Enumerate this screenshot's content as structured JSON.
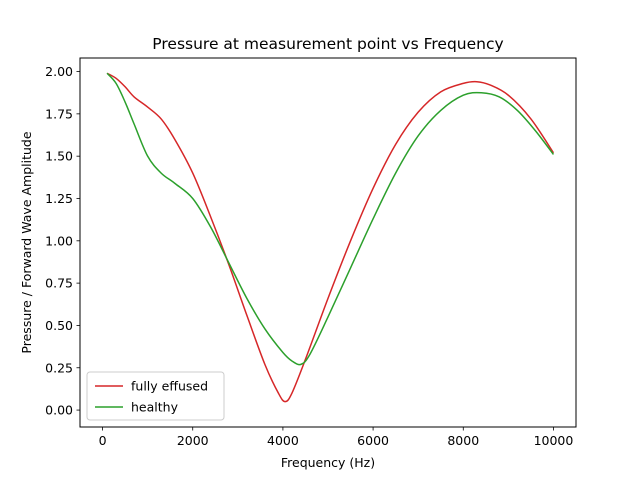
{
  "chart_data": {
    "type": "line",
    "title": "Pressure at measurement point vs Frequency",
    "xlabel": "Frequency (Hz)",
    "ylabel": "Pressure / Forward Wave Amplitude",
    "xlim": [
      -500,
      10500
    ],
    "ylim": [
      -0.1,
      2.08
    ],
    "xticks": [
      0,
      2000,
      4000,
      6000,
      8000,
      10000
    ],
    "xtick_labels": [
      "0",
      "2000",
      "4000",
      "6000",
      "8000",
      "10000"
    ],
    "yticks": [
      0.0,
      0.25,
      0.5,
      0.75,
      1.0,
      1.25,
      1.5,
      1.75,
      2.0
    ],
    "ytick_labels": [
      "0.00",
      "0.25",
      "0.50",
      "0.75",
      "1.00",
      "1.25",
      "1.50",
      "1.75",
      "2.00"
    ],
    "grid": false,
    "legend_position": "lower-left",
    "series": [
      {
        "name": "fully effused",
        "color": "#d62728",
        "x": [
          100,
          300,
          500,
          700,
          1000,
          1300,
          1600,
          2000,
          2400,
          2800,
          3200,
          3600,
          3900,
          4050,
          4200,
          4500,
          5000,
          5500,
          6000,
          6500,
          7000,
          7500,
          8000,
          8300,
          8600,
          9000,
          9500,
          10000
        ],
        "y": [
          1.99,
          1.96,
          1.91,
          1.85,
          1.79,
          1.72,
          1.6,
          1.4,
          1.14,
          0.86,
          0.56,
          0.27,
          0.1,
          0.05,
          0.1,
          0.3,
          0.66,
          1.0,
          1.31,
          1.57,
          1.76,
          1.88,
          1.93,
          1.94,
          1.92,
          1.86,
          1.72,
          1.52
        ]
      },
      {
        "name": "healthy",
        "color": "#2ca02c",
        "x": [
          100,
          300,
          500,
          700,
          1000,
          1300,
          1600,
          2000,
          2400,
          2800,
          3200,
          3600,
          4000,
          4200,
          4400,
          4600,
          5000,
          5500,
          6000,
          6500,
          7000,
          7500,
          8000,
          8400,
          8800,
          9200,
          9600,
          10000
        ],
        "y": [
          1.99,
          1.93,
          1.82,
          1.69,
          1.5,
          1.4,
          1.34,
          1.25,
          1.08,
          0.87,
          0.66,
          0.48,
          0.34,
          0.29,
          0.27,
          0.33,
          0.55,
          0.84,
          1.13,
          1.4,
          1.62,
          1.77,
          1.86,
          1.875,
          1.85,
          1.77,
          1.65,
          1.51
        ]
      }
    ]
  }
}
